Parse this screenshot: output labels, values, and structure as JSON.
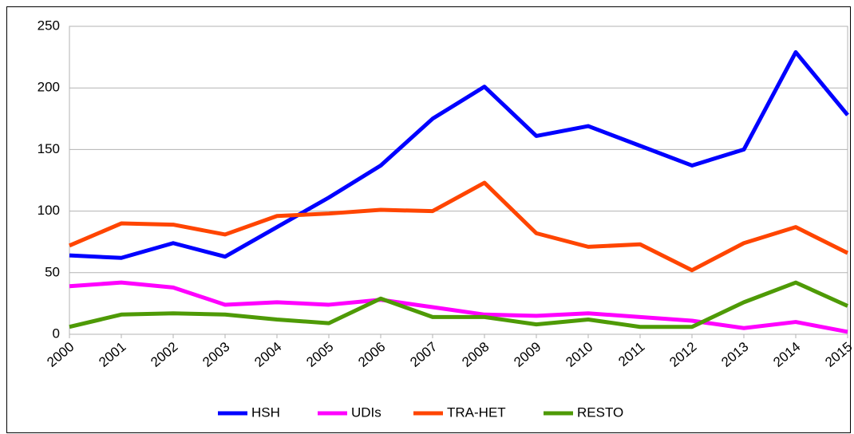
{
  "chart_data": {
    "type": "line",
    "categories": [
      "2000",
      "2001",
      "2002",
      "2003",
      "2004",
      "2005",
      "2006",
      "2007",
      "2008",
      "2009",
      "2010",
      "2011",
      "2012",
      "2013",
      "2014",
      "2015"
    ],
    "series": [
      {
        "name": "HSH",
        "color": "#0000ff",
        "values": [
          64,
          62,
          74,
          63,
          87,
          111,
          137,
          175,
          201,
          161,
          169,
          153,
          137,
          150,
          229,
          178
        ]
      },
      {
        "name": "UDIs",
        "color": "#ff00ff",
        "values": [
          39,
          42,
          38,
          24,
          26,
          24,
          28,
          22,
          16,
          15,
          17,
          14,
          11,
          5,
          10,
          2
        ]
      },
      {
        "name": "TRA-HET",
        "color": "#ff4500",
        "values": [
          72,
          90,
          89,
          81,
          96,
          98,
          101,
          100,
          123,
          82,
          71,
          73,
          52,
          74,
          87,
          66
        ]
      },
      {
        "name": "RESTO",
        "color": "#4e9a06",
        "values": [
          6,
          16,
          17,
          16,
          12,
          9,
          29,
          14,
          14,
          8,
          12,
          6,
          6,
          26,
          42,
          23
        ]
      }
    ],
    "ylim": [
      0,
      250
    ],
    "yticks": [
      0,
      50,
      100,
      150,
      200,
      250
    ],
    "grid": true,
    "legend": "bottom"
  }
}
